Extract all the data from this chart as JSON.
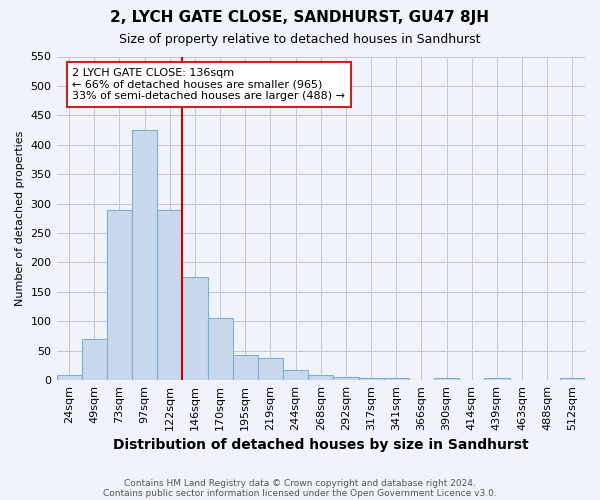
{
  "title": "2, LYCH GATE CLOSE, SANDHURST, GU47 8JH",
  "subtitle": "Size of property relative to detached houses in Sandhurst",
  "xlabel": "Distribution of detached houses by size in Sandhurst",
  "ylabel": "Number of detached properties",
  "footnote1": "Contains HM Land Registry data © Crown copyright and database right 2024.",
  "footnote2": "Contains public sector information licensed under the Open Government Licence v3.0.",
  "categories": [
    "24sqm",
    "49sqm",
    "73sqm",
    "97sqm",
    "122sqm",
    "146sqm",
    "170sqm",
    "195sqm",
    "219sqm",
    "244sqm",
    "268sqm",
    "292sqm",
    "317sqm",
    "341sqm",
    "366sqm",
    "390sqm",
    "414sqm",
    "439sqm",
    "463sqm",
    "488sqm",
    "512sqm"
  ],
  "values": [
    8,
    70,
    290,
    425,
    290,
    175,
    105,
    43,
    38,
    18,
    8,
    5,
    3,
    3,
    1,
    4,
    1,
    4,
    1,
    1,
    3
  ],
  "bar_color": "#c9d9ed",
  "bar_edge_color": "#7eafd4",
  "bar_width": 1.0,
  "ylim": [
    0,
    550
  ],
  "yticks": [
    0,
    50,
    100,
    150,
    200,
    250,
    300,
    350,
    400,
    450,
    500,
    550
  ],
  "red_line_x": 4.5,
  "red_line_color": "#cc0000",
  "property_label": "2 LYCH GATE CLOSE: 136sqm",
  "annotation_line1": "← 66% of detached houses are smaller (965)",
  "annotation_line2": "33% of semi-detached houses are larger (488) →",
  "annotation_box_edge": "#cc2222",
  "background_color": "#f0f4fa",
  "grid_color": "#c0c8d8",
  "title_fontsize": 11,
  "subtitle_fontsize": 9,
  "xlabel_fontsize": 10,
  "ylabel_fontsize": 8,
  "tick_fontsize": 8,
  "annot_fontsize": 8,
  "footnote_fontsize": 6.5
}
